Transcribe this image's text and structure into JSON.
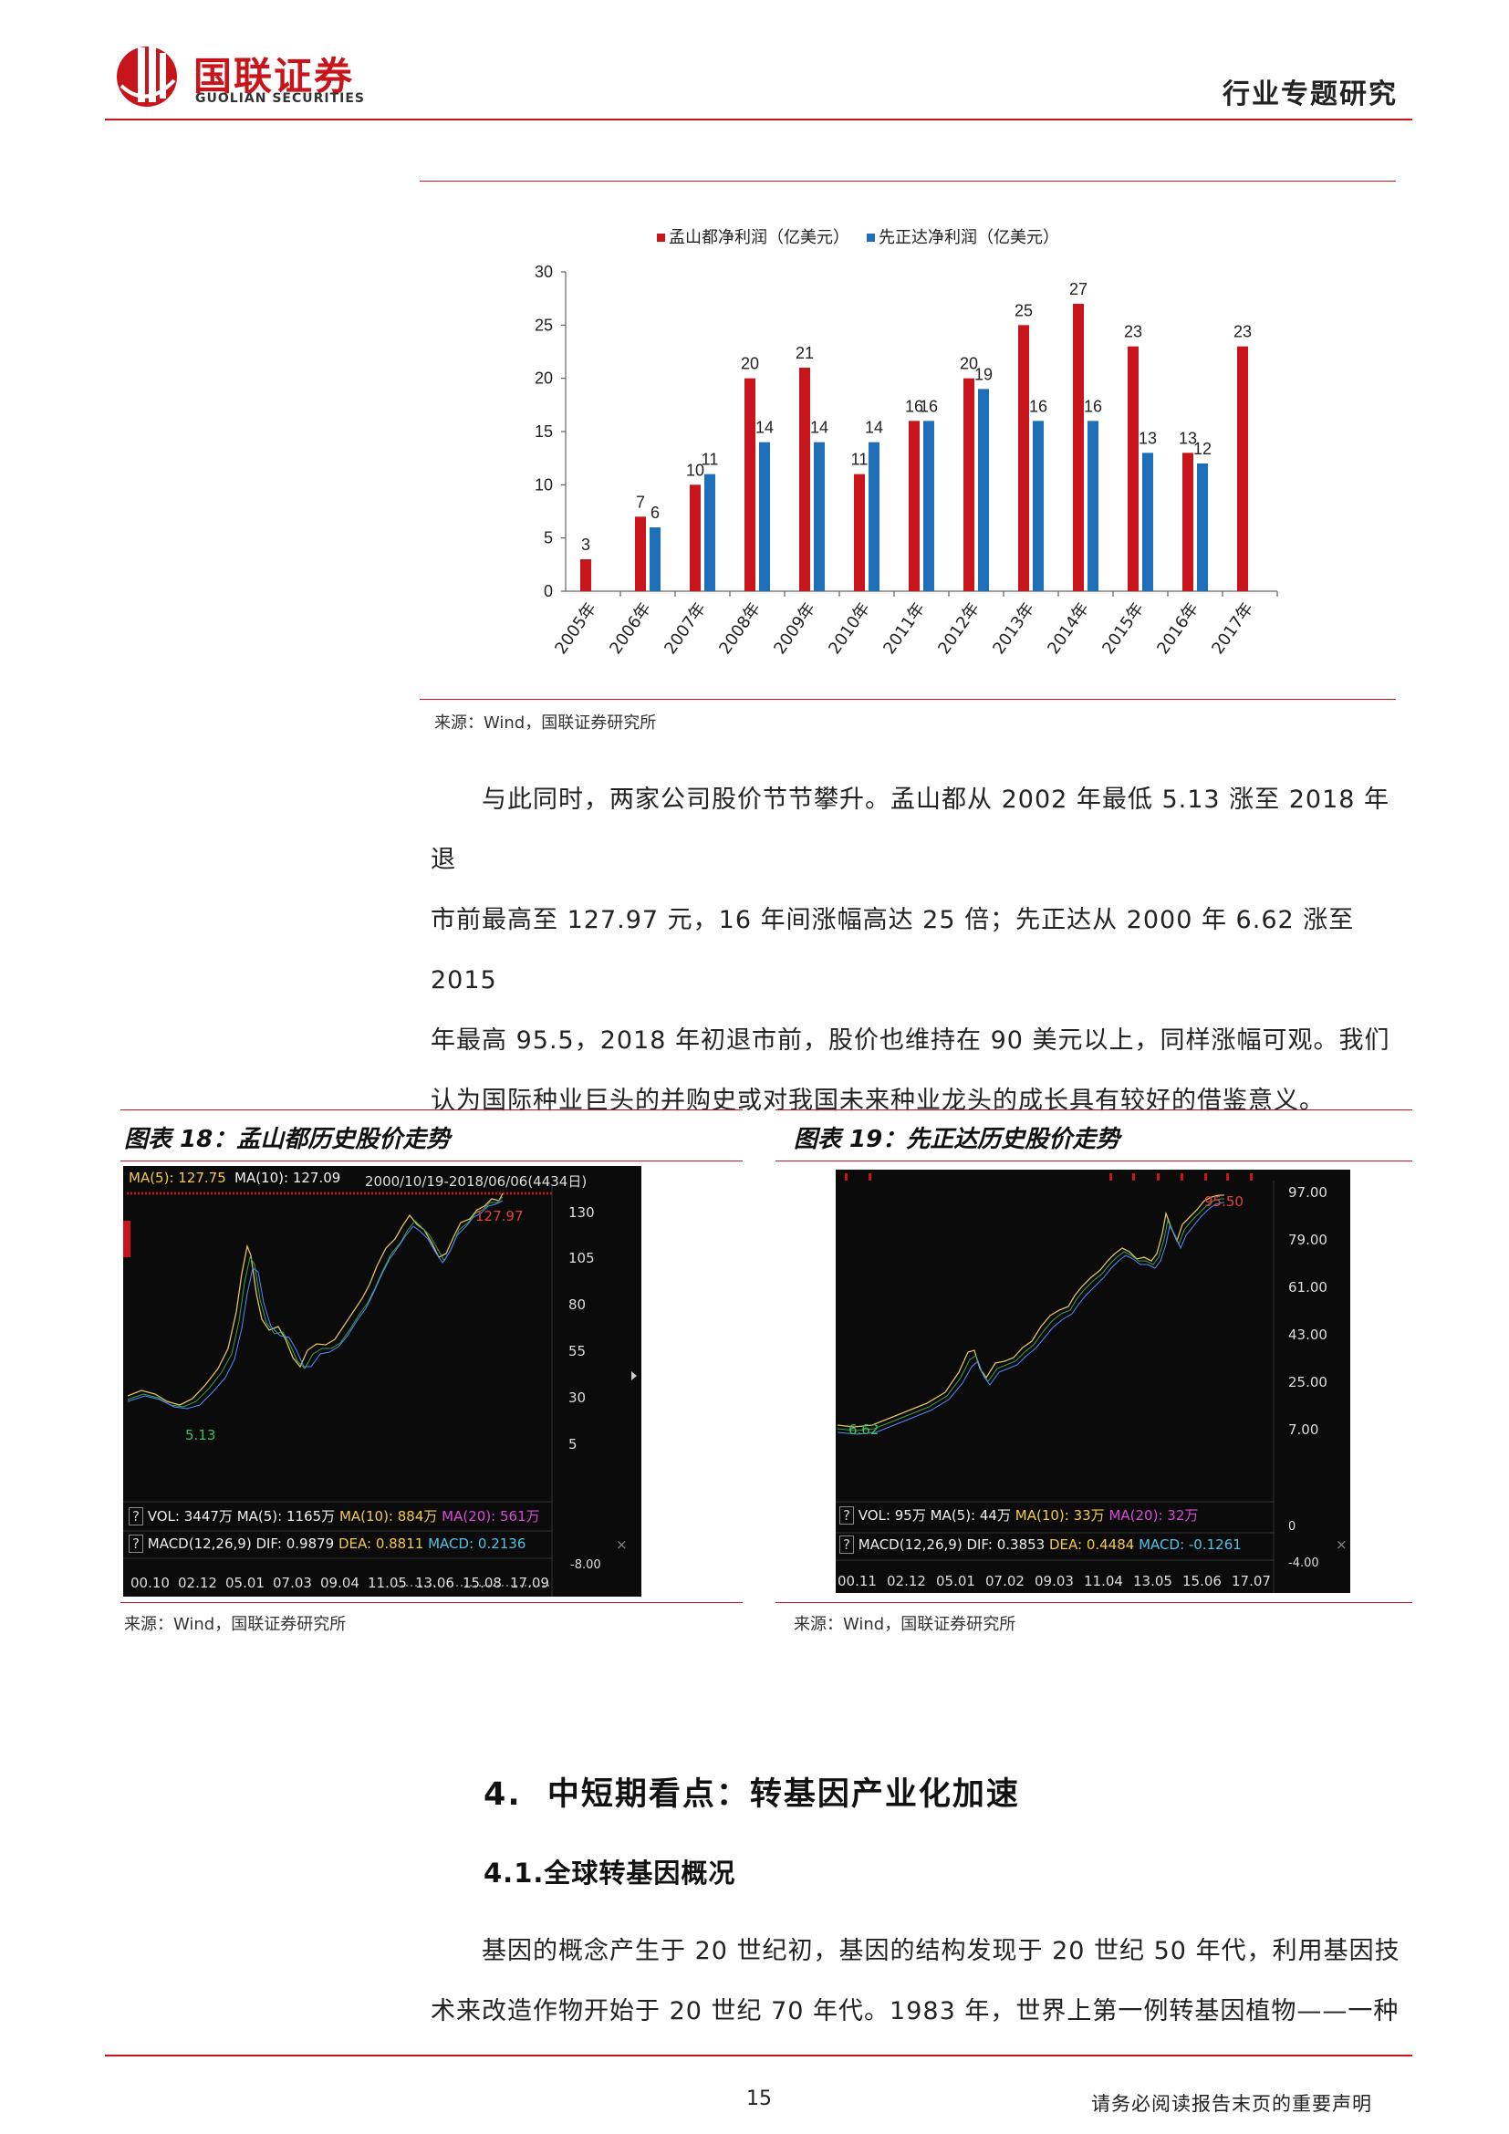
{
  "header": {
    "logo_cn": "国联证券",
    "logo_en": "GUOLIAN SECURITIES",
    "report_type": "行业专题研究"
  },
  "chart_data": {
    "type": "bar",
    "categories": [
      "2005年",
      "2006年",
      "2007年",
      "2008年",
      "2009年",
      "2010年",
      "2011年",
      "2012年",
      "2013年",
      "2014年",
      "2015年",
      "2016年",
      "2017年"
    ],
    "series": [
      {
        "name": "孟山都净利润（亿美元）",
        "color": "#c8141b",
        "values": [
          3,
          7,
          10,
          20,
          21,
          11,
          16,
          20,
          25,
          27,
          23,
          13,
          23
        ]
      },
      {
        "name": "先正达净利润（亿美元）",
        "color": "#1f6fb8",
        "values": [
          null,
          6,
          11,
          14,
          14,
          14,
          16,
          19,
          16,
          16,
          13,
          12,
          null
        ]
      }
    ],
    "ylim": [
      0,
      30
    ],
    "yticks": [
      0,
      5,
      10,
      15,
      20,
      25,
      30
    ],
    "legend": "top"
  },
  "chart_source": "来源：Wind，国联证券研究所",
  "paragraph1": [
    "与此同时，两家公司股价节节攀升。孟山都从 2002 年最低 5.13 涨至 2018 年退",
    "市前最高至 127.97 元，16 年间涨幅高达 25 倍；先正达从 2000 年 6.62 涨至 2015",
    "年最高 95.5，2018 年初退市前，股价也维持在 90 美元以上，同样涨幅可观。我们",
    "认为国际种业巨头的并购史或对我国未来种业龙头的成长具有较好的借鉴意义。"
  ],
  "fig18": {
    "title": "图表 18：孟山都历史股价走势",
    "source": "来源：Wind，国联证券研究所",
    "ma_line": {
      "ma5": "MA(5): 127.75",
      "ma10": "MA(10): 127.09",
      "range": "2000/10/19-2018/06/06(4434日)"
    },
    "high_label": "127.97",
    "low_label": "5.13",
    "y_ticks": [
      "130",
      "105",
      "80",
      "55",
      "30",
      "5"
    ],
    "vol": {
      "vol": "VOL: 3447万",
      "ma5": "MA(5): 1165万",
      "ma10": "MA(10): 884万",
      "ma20": "MA(20): 561万"
    },
    "macd": {
      "label": "MACD(12,26,9)",
      "dif": "DIF: 0.9879",
      "dea": "DEA: 0.8811",
      "macd": "MACD: 0.2136"
    },
    "macd_tick": "-8.00",
    "x_ticks": [
      "00.10",
      "02.12",
      "05.01",
      "07.03",
      "09.04",
      "11.05",
      "13.06",
      "15.08",
      "17.09"
    ]
  },
  "fig19": {
    "title": "图表 19：先正达历史股价走势",
    "source": "来源：Wind，国联证券研究所",
    "high_label": "95.50",
    "low_label": "6.62",
    "y_ticks": [
      "97.00",
      "79.00",
      "61.00",
      "43.00",
      "25.00",
      "7.00"
    ],
    "vol": {
      "vol": "VOL: 95万",
      "ma5": "MA(5): 44万",
      "ma10": "MA(10): 33万",
      "ma20": "MA(20): 32万"
    },
    "macd": {
      "label": "MACD(12,26,9)",
      "dif": "DIF: 0.3853",
      "dea": "DEA: 0.4484",
      "macd": "MACD: -0.1261"
    },
    "vol_tick": "0",
    "macd_tick": "-4.00",
    "x_ticks": [
      "00.11",
      "02.12",
      "05.01",
      "07.02",
      "09.03",
      "11.04",
      "13.05",
      "15.06",
      "17.07"
    ]
  },
  "section4": {
    "number": "4.",
    "title": "中短期看点：转基因产业化加速"
  },
  "section41": {
    "number": "4.1.",
    "title": "全球转基因概况"
  },
  "paragraph2": [
    "基因的概念产生于 20 世纪初，基因的结构发现于 20 世纪 50 年代，利用基因技",
    "术来改造作物开始于 20 世纪 70 年代。1983 年，世界上第一例转基因植物——一种"
  ],
  "footer": {
    "page": "15",
    "disclaimer": "请务必阅读报告末页的重要声明"
  }
}
